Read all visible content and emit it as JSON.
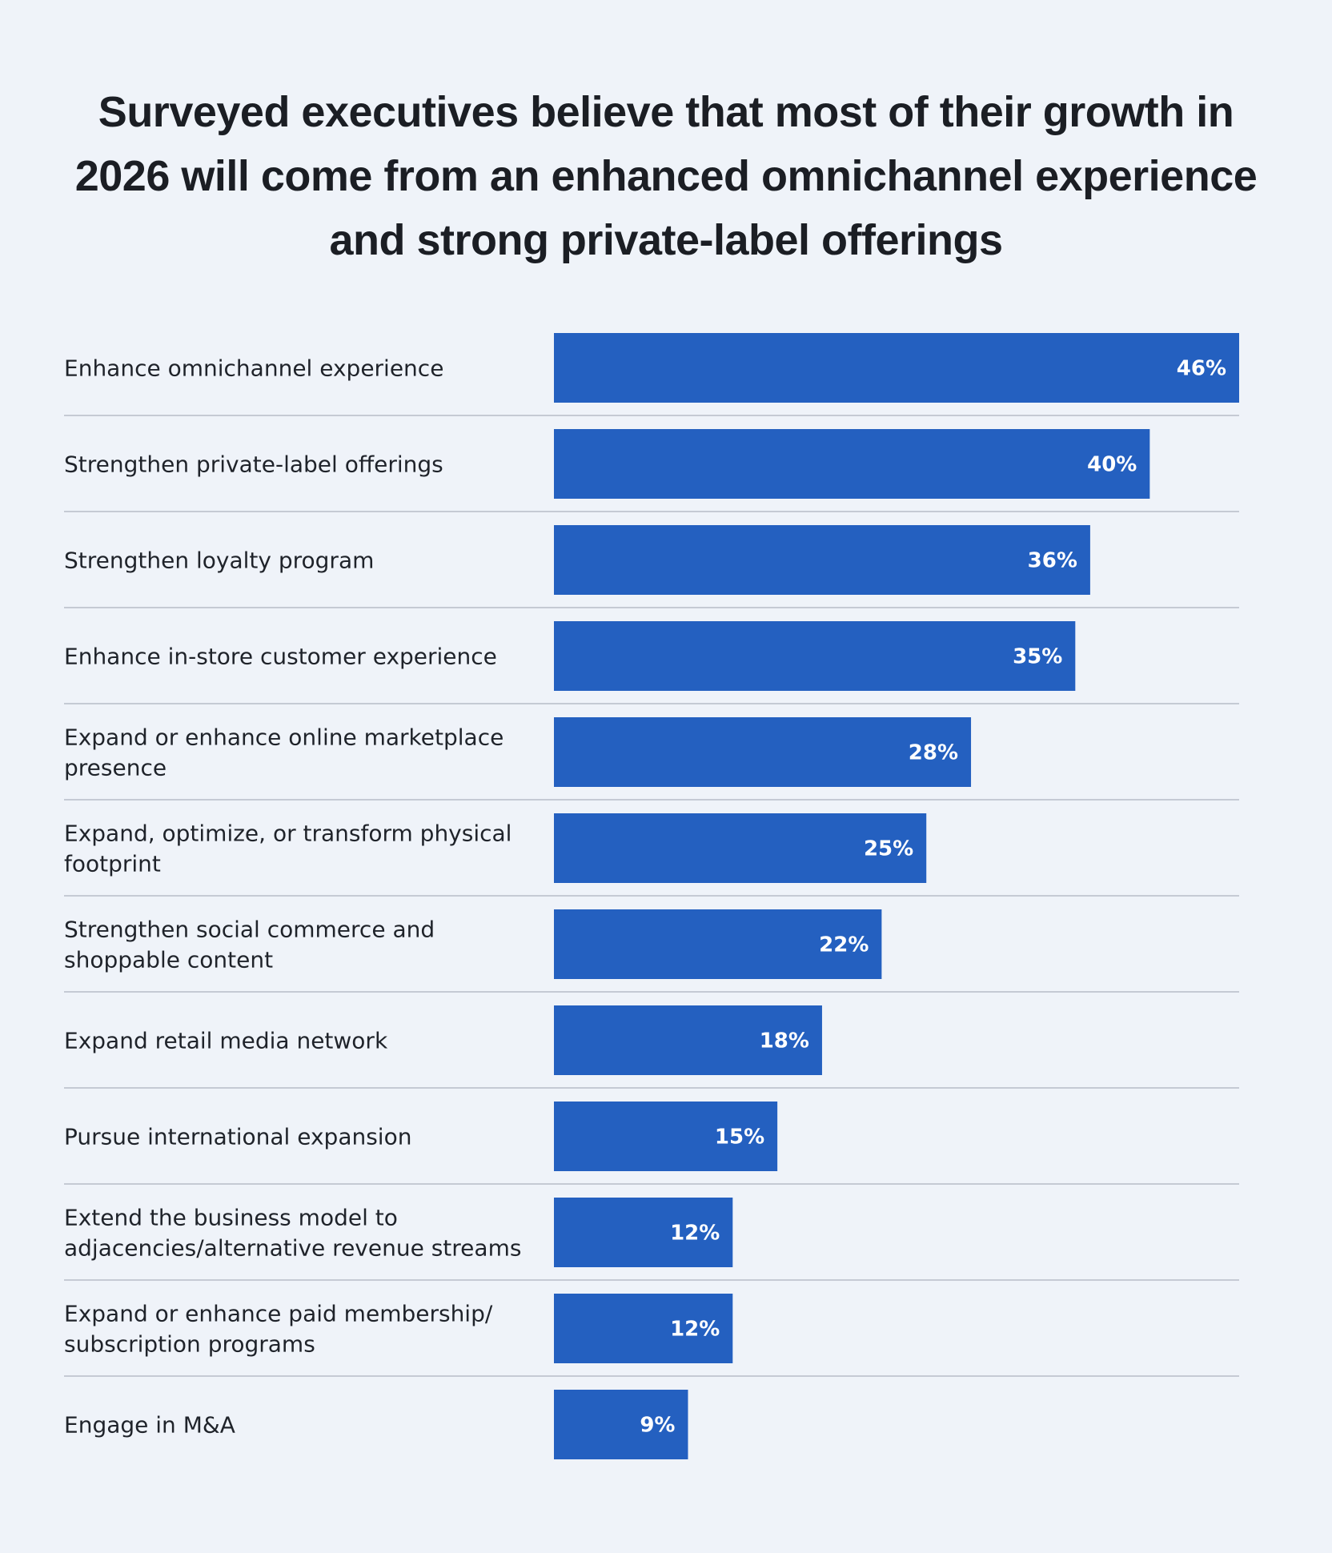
{
  "chart_data": {
    "type": "bar",
    "orientation": "horizontal",
    "title": "Surveyed executives believe that most of their growth in 2026 will come from an enhanced omnichannel experience and strong private-label offerings",
    "categories": [
      "Enhance omnichannel experience",
      "Strengthen private-label offerings",
      "Strengthen loyalty program",
      "Enhance in-store customer experience",
      "Expand or enhance online marketplace presence",
      "Expand, optimize, or transform physical footprint",
      "Strengthen social commerce and shoppable content",
      "Expand retail media network",
      "Pursue international expansion",
      "Extend the business model to adjacencies/alternative revenue streams",
      "Expand or enhance paid membership/ subscription programs",
      "Engage in M&A"
    ],
    "label_lines": [
      [
        "Enhance omnichannel experience"
      ],
      [
        "Strengthen private-label offerings"
      ],
      [
        "Strengthen loyalty program"
      ],
      [
        "Enhance in-store customer experience"
      ],
      [
        "Expand or enhance online marketplace",
        "presence"
      ],
      [
        "Expand, optimize, or transform physical",
        "footprint"
      ],
      [
        "Strengthen social commerce and",
        "shoppable content"
      ],
      [
        "Expand retail media network"
      ],
      [
        "Pursue international expansion"
      ],
      [
        "Extend the business model to",
        "adjacencies/alternative revenue streams"
      ],
      [
        "Expand or enhance paid membership/",
        "subscription programs"
      ],
      [
        "Engage in M&A"
      ]
    ],
    "values": [
      46,
      40,
      36,
      35,
      28,
      25,
      22,
      18,
      15,
      12,
      12,
      9
    ],
    "value_labels": [
      "46%",
      "40%",
      "36%",
      "35%",
      "28%",
      "25%",
      "22%",
      "18%",
      "15%",
      "12%",
      "12%",
      "9%"
    ],
    "xlim": [
      0,
      46
    ],
    "grid": false,
    "legend": "none",
    "colors": {
      "bar": "#2460c0",
      "separator": "#c5cad4",
      "background": "#eff3f9",
      "value_text": "#ffffff"
    }
  }
}
